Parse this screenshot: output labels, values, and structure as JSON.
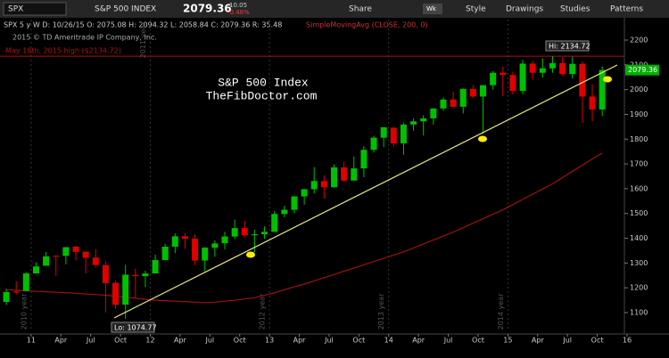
{
  "toolbar": {
    "symbol": "SPX",
    "description": "S&P 500 INDEX",
    "last": "2079.36",
    "change": "10.05",
    "change_pct": "-0.48%",
    "buttons": [
      "Share",
      "Wk",
      "Style",
      "Drawings",
      "Studies",
      "Patterns"
    ]
  },
  "chart_data": {
    "type": "candlestick",
    "info": "SPX 5 y W   D: 10/26/15   O: 2075.08   H: 2094.32   L: 2058.84   C: 2079.36   R: 35.48",
    "study": "SimpleMovingAvg (CLOSE, 200, 0)",
    "copyright": "2015 © TD Ameritrade IP Company, Inc.",
    "title": "S&P 500 Index",
    "subtitle": "TheFibDoctor.com",
    "x": [
      "2010-10",
      "2010-11",
      "2010-12",
      "2011-01",
      "2011-02",
      "2011-03",
      "2011-04",
      "2011-05",
      "2011-06",
      "2011-07",
      "2011-08",
      "2011-09",
      "2011-10",
      "2011-11",
      "2011-12",
      "2012-01",
      "2012-02",
      "2012-03",
      "2012-04",
      "2012-05",
      "2012-06",
      "2012-07",
      "2012-08",
      "2012-09",
      "2012-10",
      "2012-11",
      "2012-12",
      "2013-01",
      "2013-02",
      "2013-03",
      "2013-04",
      "2013-05",
      "2013-06",
      "2013-07",
      "2013-08",
      "2013-09",
      "2013-10",
      "2013-11",
      "2013-12",
      "2014-01",
      "2014-02",
      "2014-03",
      "2014-04",
      "2014-05",
      "2014-06",
      "2014-07",
      "2014-08",
      "2014-09",
      "2014-10",
      "2014-11",
      "2014-12",
      "2015-01",
      "2015-02",
      "2015-03",
      "2015-04",
      "2015-05",
      "2015-06",
      "2015-07",
      "2015-08",
      "2015-09",
      "2015-10"
    ],
    "open": [
      1143,
      1185,
      1187,
      1258,
      1289,
      1329,
      1329,
      1366,
      1346,
      1322,
      1292,
      1220,
      1132,
      1252,
      1247,
      1258,
      1312,
      1366,
      1408,
      1398,
      1310,
      1362,
      1380,
      1407,
      1441,
      1412,
      1416,
      1426,
      1498,
      1515,
      1569,
      1598,
      1631,
      1606,
      1686,
      1633,
      1682,
      1757,
      1806,
      1846,
      1783,
      1859,
      1872,
      1884,
      1924,
      1960,
      1931,
      2003,
      1972,
      2018,
      2068,
      2059,
      1995,
      2105,
      2068,
      2086,
      2107,
      2063,
      2104,
      1972,
      1920
    ],
    "high": [
      1196,
      1227,
      1262,
      1303,
      1344,
      1332,
      1364,
      1370,
      1346,
      1356,
      1307,
      1229,
      1293,
      1277,
      1269,
      1334,
      1378,
      1420,
      1422,
      1416,
      1364,
      1392,
      1426,
      1475,
      1470,
      1434,
      1448,
      1509,
      1531,
      1570,
      1597,
      1687,
      1654,
      1698,
      1709,
      1730,
      1772,
      1814,
      1849,
      1850,
      1867,
      1884,
      1897,
      1924,
      1968,
      1992,
      2005,
      2019,
      2018,
      2075,
      2093,
      2072,
      2120,
      2115,
      2126,
      2134.72,
      2130,
      2133,
      2113,
      2021,
      2094
    ],
    "low": [
      1131,
      1173,
      1187,
      1257,
      1289,
      1249,
      1295,
      1311,
      1258,
      1282,
      1101,
      1115,
      1074.77,
      1159,
      1202,
      1258,
      1312,
      1340,
      1357,
      1292,
      1267,
      1325,
      1355,
      1397,
      1403,
      1343,
      1398,
      1426,
      1485,
      1501,
      1536,
      1581,
      1560,
      1604,
      1628,
      1633,
      1646,
      1746,
      1768,
      1770,
      1737,
      1834,
      1815,
      1859,
      1915,
      1930,
      1904,
      1965,
      1821,
      2001,
      1973,
      1981,
      1981,
      2040,
      2049,
      2068,
      2056,
      2045,
      1867,
      1872,
      1893
    ],
    "close": [
      1183,
      1181,
      1258,
      1286,
      1327,
      1326,
      1364,
      1345,
      1321,
      1292,
      1219,
      1131,
      1253,
      1247,
      1258,
      1312,
      1366,
      1408,
      1398,
      1310,
      1362,
      1379,
      1407,
      1441,
      1412,
      1416,
      1426,
      1498,
      1515,
      1569,
      1598,
      1631,
      1606,
      1686,
      1633,
      1682,
      1757,
      1806,
      1848,
      1783,
      1859,
      1872,
      1884,
      1924,
      1960,
      1931,
      2003,
      1972,
      2018,
      2068,
      2059,
      1995,
      2105,
      2068,
      2086,
      2107,
      2063,
      2104,
      1972,
      1920,
      2079
    ],
    "sma": [
      1192,
      1190,
      1188,
      1186,
      1184,
      1182,
      1180,
      1178,
      1175,
      1173,
      1170,
      1166,
      1162,
      1158,
      1154,
      1150,
      1148,
      1146,
      1144,
      1142,
      1140,
      1142,
      1146,
      1150,
      1155,
      1160,
      1170,
      1180,
      1192,
      1204,
      1215,
      1228,
      1241,
      1254,
      1267,
      1280,
      1293,
      1306,
      1319,
      1332,
      1345,
      1361,
      1377,
      1393,
      1409,
      1425,
      1443,
      1461,
      1479,
      1497,
      1515,
      1536,
      1557,
      1578,
      1599,
      1620,
      1645,
      1670,
      1695,
      1720,
      1745
    ],
    "up_color": "#00c000",
    "down_color": "#e00000",
    "sma_color": "#a01010",
    "hline": {
      "value": 2134.72,
      "label": "May 18th, 2015 high ($2134.72)",
      "color": "#b01010"
    },
    "hi_label": "Hi: 2134.72",
    "lo_label": "Lo: 1074.77",
    "last_label": "2079.36",
    "year_labels": [
      "2010 year",
      "2011 year",
      "2012 year",
      "2013 year",
      "2014 year"
    ],
    "ylim": [
      1024.5,
      2282.7
    ],
    "yticks": [
      1100,
      1200,
      1300,
      1400,
      1500,
      1600,
      1700,
      1800,
      1900,
      2000,
      2100,
      2200
    ],
    "xlim": [
      "2010-09-27",
      "2015-12-23"
    ],
    "xticks": [
      {
        "value": "2011-01-01",
        "label": "11"
      },
      {
        "value": "2011-04-01",
        "label": "Apr"
      },
      {
        "value": "2011-07-01",
        "label": "Jul"
      },
      {
        "value": "2011-10-01",
        "label": "Oct"
      },
      {
        "value": "2012-01-01",
        "label": "12"
      },
      {
        "value": "2012-04-01",
        "label": "Apr"
      },
      {
        "value": "2012-07-01",
        "label": "Jul"
      },
      {
        "value": "2012-10-01",
        "label": "Oct"
      },
      {
        "value": "2013-01-01",
        "label": "13"
      },
      {
        "value": "2013-04-01",
        "label": "Apr"
      },
      {
        "value": "2013-07-01",
        "label": "Jul"
      },
      {
        "value": "2013-10-01",
        "label": "Oct"
      },
      {
        "value": "2014-01-01",
        "label": "14"
      },
      {
        "value": "2014-04-01",
        "label": "Apr"
      },
      {
        "value": "2014-07-01",
        "label": "Jul"
      },
      {
        "value": "2014-10-01",
        "label": "Oct"
      },
      {
        "value": "2015-01-01",
        "label": "15"
      },
      {
        "value": "2015-04-01",
        "label": "Apr"
      },
      {
        "value": "2015-07-01",
        "label": "Jul"
      },
      {
        "value": "2015-10-01",
        "label": "Oct"
      },
      {
        "value": "2016-01-01",
        "label": "16"
      }
    ]
  }
}
